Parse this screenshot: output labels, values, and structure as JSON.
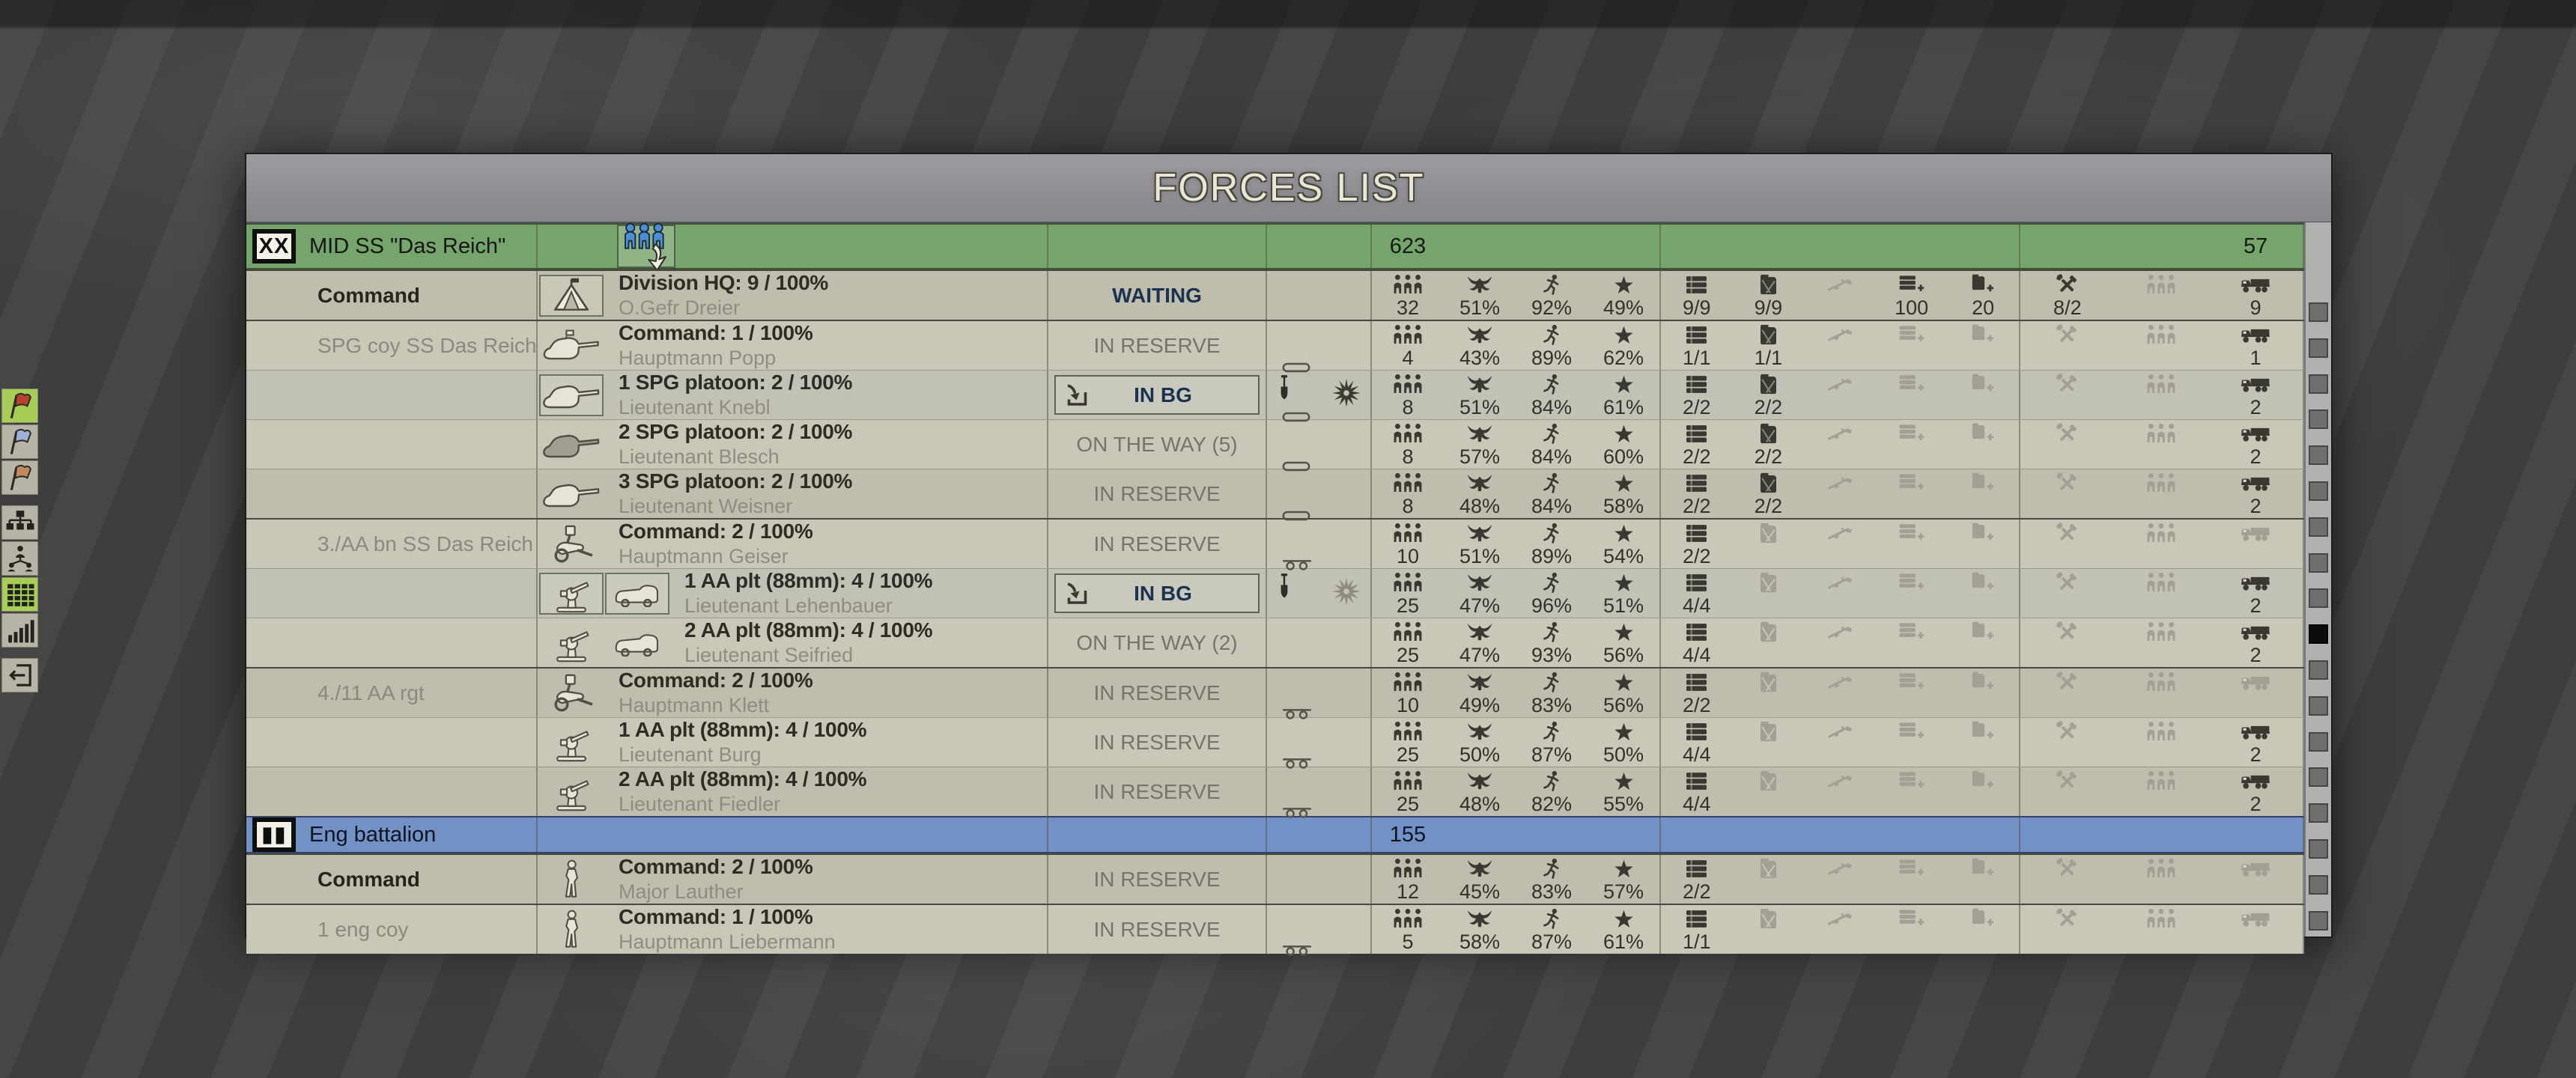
{
  "title": "FORCES LIST",
  "colors": {
    "division_row": "#76a46d",
    "battalion_row": "#7292c5",
    "status_active": "#1b3350",
    "toolbar_active": "#a8cd57"
  },
  "toolbar": {
    "buttons": [
      {
        "id": "red-flag-button",
        "icon": "flag-icon",
        "flag_color": "#b8412f",
        "active": true,
        "group": 0
      },
      {
        "id": "blue-flag-button",
        "icon": "flag-icon",
        "flag_color": "#9fb0d8",
        "active": false,
        "group": 0
      },
      {
        "id": "orange-flag-button",
        "icon": "flag-icon",
        "flag_color": "#c28a5c",
        "active": false,
        "group": 0
      },
      {
        "id": "org-chart-button",
        "icon": "org-chart-icon",
        "active": false,
        "group": 1
      },
      {
        "id": "unit-tree-button",
        "icon": "unit-tree-icon",
        "active": false,
        "group": 1
      },
      {
        "id": "forces-list-button",
        "icon": "forces-table-icon",
        "active": true,
        "group": 1
      },
      {
        "id": "statistics-button",
        "icon": "bar-chart-icon",
        "active": false,
        "group": 1
      },
      {
        "id": "exit-button",
        "icon": "exit-icon",
        "active": false,
        "group": 2
      }
    ]
  },
  "scrollbar": {
    "marker_count": 18,
    "active_marker_index": 9
  },
  "legend": {
    "personnel_icons": [
      "men-icon",
      "morale-eagle-icon",
      "fitness-runner-icon",
      "experience-star-icon"
    ],
    "supply_icons": [
      "ammo-icon",
      "fuel-icon",
      "weapon-icon",
      "ammo-resupply-icon",
      "fuel-resupply-icon"
    ],
    "support_icons": [
      "repair-icon",
      "crew-icon",
      "truck-icon"
    ]
  },
  "rows": [
    {
      "kind": "division",
      "badge": "XX",
      "name": "MID SS \"Das Reich\"",
      "deploy_button": true,
      "personnel": {
        "men": "623"
      },
      "support": {
        "truck": "57"
      }
    },
    {
      "kind": "unit",
      "name": "Command",
      "name_style": "strong",
      "icons": [
        {
          "type": "tent-icon",
          "boxed": true,
          "variant": "light"
        }
      ],
      "line1": "Division HQ: 9 / 100%",
      "line2": "O.Gefr Dreier",
      "status": "WAITING",
      "status_style": "active",
      "personnel": {
        "men": "32",
        "morale": "51%",
        "fitness": "92%",
        "experience": "49%"
      },
      "supplies": {
        "ammo": "9/9",
        "fuel": "9/9",
        "ammo_add": "100",
        "fuel_add": "20"
      },
      "support": {
        "repair": "8/2",
        "truck": "9"
      },
      "group_start": true
    },
    {
      "kind": "unit",
      "name": "SPG coy SS Das Reich",
      "icons": [
        {
          "type": "spg-command-icon",
          "variant": "light"
        }
      ],
      "line1": "Command: 1 / 100%",
      "line2": "Hauptmann Popp",
      "status": "IN RESERVE",
      "status_style": "muted",
      "state": {
        "bottom": "capsule"
      },
      "personnel": {
        "men": "4",
        "morale": "43%",
        "fitness": "89%",
        "experience": "62%"
      },
      "supplies": {
        "ammo": "1/1",
        "fuel": "1/1"
      },
      "support": {
        "truck": "1"
      },
      "group_start": true
    },
    {
      "kind": "unit",
      "name": "",
      "icons": [
        {
          "type": "spg-icon",
          "boxed": true,
          "variant": "light"
        }
      ],
      "line1": "1 SPG platoon: 2 / 100%",
      "line2": "Lieutenant Knebl",
      "status": "IN BG",
      "status_style": "active",
      "status_button": true,
      "state": {
        "shovel": true,
        "explosion": "dark",
        "bottom": "capsule"
      },
      "personnel": {
        "men": "8",
        "morale": "51%",
        "fitness": "84%",
        "experience": "61%"
      },
      "supplies": {
        "ammo": "2/2",
        "fuel": "2/2"
      },
      "support": {
        "truck": "2"
      }
    },
    {
      "kind": "unit",
      "name": "",
      "icons": [
        {
          "type": "spg-icon",
          "variant": "dark"
        }
      ],
      "line1": "2 SPG platoon: 2 / 100%",
      "line2": "Lieutenant Blesch",
      "status": "ON THE WAY (5)",
      "status_style": "muted",
      "state": {
        "bottom": "capsule"
      },
      "personnel": {
        "men": "8",
        "morale": "57%",
        "fitness": "84%",
        "experience": "60%"
      },
      "supplies": {
        "ammo": "2/2",
        "fuel": "2/2"
      },
      "support": {
        "truck": "2"
      }
    },
    {
      "kind": "unit",
      "name": "",
      "icons": [
        {
          "type": "spg-icon",
          "variant": "light"
        }
      ],
      "line1": "3 SPG platoon: 2 / 100%",
      "line2": "Lieutenant Weisner",
      "status": "IN RESERVE",
      "status_style": "muted",
      "state": {
        "bottom": "capsule"
      },
      "personnel": {
        "men": "8",
        "morale": "48%",
        "fitness": "84%",
        "experience": "58%"
      },
      "supplies": {
        "ammo": "2/2",
        "fuel": "2/2"
      },
      "support": {
        "truck": "2"
      }
    },
    {
      "kind": "unit",
      "name": "3./AA bn SS Das Reich",
      "icons": [
        {
          "type": "gun-limber-icon",
          "variant": "light"
        }
      ],
      "line1": "Command: 2 / 100%",
      "line2": "Hauptmann Geiser",
      "status": "IN RESERVE",
      "status_style": "muted",
      "state": {
        "bottom": "wheels"
      },
      "personnel": {
        "men": "10",
        "morale": "51%",
        "fitness": "89%",
        "experience": "54%"
      },
      "supplies": {
        "ammo": "2/2"
      },
      "support": {},
      "group_start": true
    },
    {
      "kind": "unit",
      "name": "",
      "icons": [
        {
          "type": "aa-gun-icon",
          "boxed": true,
          "variant": "light"
        },
        {
          "type": "truck-outline-icon",
          "boxed": true,
          "variant": "light"
        }
      ],
      "line1": "1 AA plt (88mm): 4 / 100%",
      "line2": "Lieutenant Lehenbauer",
      "status": "IN BG",
      "status_style": "active",
      "status_button": true,
      "state": {
        "shovel": true,
        "explosion": "light"
      },
      "personnel": {
        "men": "25",
        "morale": "47%",
        "fitness": "96%",
        "experience": "51%"
      },
      "supplies": {
        "ammo": "4/4"
      },
      "support": {
        "truck": "2"
      }
    },
    {
      "kind": "unit",
      "name": "",
      "icons": [
        {
          "type": "aa-gun-icon",
          "variant": "light"
        },
        {
          "type": "truck-outline-icon",
          "variant": "light"
        }
      ],
      "line1": "2 AA plt (88mm): 4 / 100%",
      "line2": "Lieutenant Seifried",
      "status": "ON THE WAY (2)",
      "status_style": "muted",
      "personnel": {
        "men": "25",
        "morale": "47%",
        "fitness": "93%",
        "experience": "56%"
      },
      "supplies": {
        "ammo": "4/4"
      },
      "support": {
        "truck": "2"
      }
    },
    {
      "kind": "unit",
      "name": "4./11 AA rgt",
      "icons": [
        {
          "type": "gun-limber-icon",
          "variant": "light"
        }
      ],
      "line1": "Command: 2 / 100%",
      "line2": "Hauptmann Klett",
      "status": "IN RESERVE",
      "status_style": "muted",
      "state": {
        "bottom": "wheels"
      },
      "personnel": {
        "men": "10",
        "morale": "49%",
        "fitness": "83%",
        "experience": "56%"
      },
      "supplies": {
        "ammo": "2/2"
      },
      "support": {},
      "group_start": true
    },
    {
      "kind": "unit",
      "name": "",
      "icons": [
        {
          "type": "aa-gun-icon",
          "variant": "light"
        }
      ],
      "line1": "1 AA plt (88mm): 4 / 100%",
      "line2": "Lieutenant Burg",
      "status": "IN RESERVE",
      "status_style": "muted",
      "state": {
        "bottom": "wheels"
      },
      "personnel": {
        "men": "25",
        "morale": "50%",
        "fitness": "87%",
        "experience": "50%"
      },
      "supplies": {
        "ammo": "4/4"
      },
      "support": {
        "truck": "2"
      }
    },
    {
      "kind": "unit",
      "name": "",
      "icons": [
        {
          "type": "aa-gun-icon",
          "variant": "light"
        }
      ],
      "line1": "2 AA plt (88mm): 4 / 100%",
      "line2": "Lieutenant Fiedler",
      "status": "IN RESERVE",
      "status_style": "muted",
      "state": {
        "bottom": "wheels"
      },
      "personnel": {
        "men": "25",
        "morale": "48%",
        "fitness": "82%",
        "experience": "55%"
      },
      "supplies": {
        "ammo": "4/4"
      },
      "support": {
        "truck": "2"
      }
    },
    {
      "kind": "battalion",
      "badge": "▮▮",
      "name": "Eng battalion",
      "personnel": {
        "men": "155"
      },
      "support": {},
      "group_start": true
    },
    {
      "kind": "unit",
      "name": "Command",
      "name_style": "strong",
      "icons": [
        {
          "type": "soldier-icon",
          "variant": "light"
        }
      ],
      "line1": "Command: 2 / 100%",
      "line2": "Major Lauther",
      "status": "IN RESERVE",
      "status_style": "muted",
      "personnel": {
        "men": "12",
        "morale": "45%",
        "fitness": "83%",
        "experience": "57%"
      },
      "supplies": {
        "ammo": "2/2"
      },
      "support": {},
      "group_start": true
    },
    {
      "kind": "unit",
      "name": "1 eng coy",
      "icons": [
        {
          "type": "soldier-icon",
          "variant": "light"
        }
      ],
      "line1": "Command: 1 / 100%",
      "line2": "Hauptmann Liebermann",
      "status": "IN RESERVE",
      "status_style": "muted",
      "state": {
        "bottom": "wheels"
      },
      "personnel": {
        "men": "5",
        "morale": "58%",
        "fitness": "87%",
        "experience": "61%"
      },
      "supplies": {
        "ammo": "1/1"
      },
      "support": {},
      "group_start": true
    }
  ]
}
